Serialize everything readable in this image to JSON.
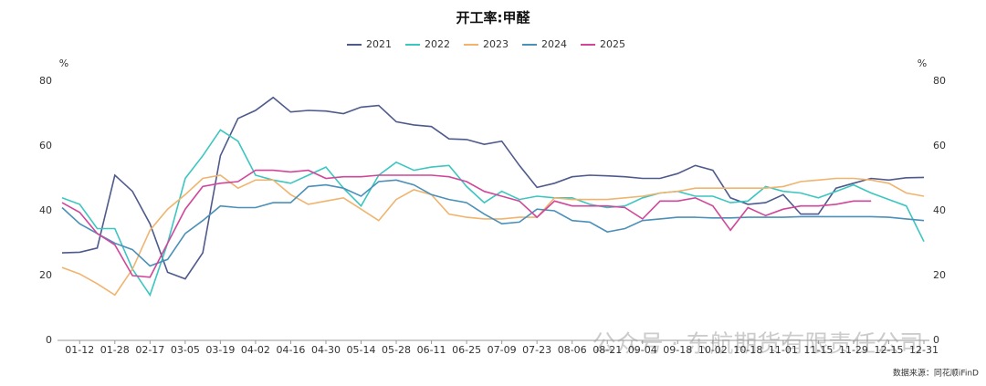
{
  "chart_data": {
    "type": "line",
    "title": "开工率:甲醛",
    "y_unit": "%",
    "y2_unit": "%",
    "source": "数据来源：同花顺iFinD",
    "watermark": "公众号 · 东航期货有限责任公司",
    "categories": [
      null,
      "01-12",
      null,
      "01-28",
      null,
      "02-17",
      null,
      "03-05",
      null,
      "03-19",
      null,
      "04-02",
      null,
      "04-16",
      null,
      "04-30",
      null,
      "05-14",
      null,
      "05-28",
      null,
      "06-11",
      null,
      "06-25",
      null,
      "07-09",
      null,
      "07-23",
      null,
      "08-06",
      null,
      "08-21",
      null,
      "09-04",
      null,
      "09-18",
      null,
      "10-02",
      null,
      "10-18",
      null,
      "11-01",
      null,
      "11-15",
      null,
      "11-29",
      null,
      "12-15",
      null,
      "12-31"
    ],
    "series": [
      {
        "name": "2021",
        "color": "#4e5a8c",
        "values": [
          27,
          27.2,
          28.5,
          51,
          46,
          36,
          21,
          19,
          27,
          57,
          68.5,
          71,
          75,
          70.5,
          71,
          70.8,
          70,
          72,
          72.5,
          67.5,
          66.5,
          66,
          62.2,
          62,
          60.5,
          61.5,
          54,
          47.2,
          48.5,
          50.5,
          51,
          50.8,
          50.5,
          50,
          50,
          51.5,
          54,
          52.5,
          44,
          42,
          42.5,
          45,
          39,
          39,
          47,
          48.5,
          50,
          49.5,
          50.2,
          50.3
        ]
      },
      {
        "name": "2022",
        "color": "#3cc6c0",
        "values": [
          44,
          42,
          34.5,
          34.5,
          22,
          14,
          30,
          50,
          57,
          65,
          61.5,
          51,
          49.5,
          48.5,
          51,
          53.5,
          47,
          41.5,
          51,
          55,
          52.5,
          53.5,
          54,
          47.5,
          42.5,
          46,
          43.5,
          44.5,
          44,
          44,
          42,
          41,
          41.5,
          44,
          45.5,
          46,
          44.5,
          44.5,
          42.5,
          43,
          47.5,
          46,
          45.5,
          44,
          46,
          48,
          45.5,
          43.5,
          41.5,
          30.5
        ]
      },
      {
        "name": "2023",
        "color": "#f0b46e",
        "values": [
          22.5,
          20.5,
          17.5,
          14,
          22,
          34,
          40.5,
          45,
          50,
          51,
          47,
          49.5,
          49.5,
          45,
          42,
          43,
          44,
          40.5,
          37,
          43.5,
          46.5,
          45,
          39,
          38,
          37.5,
          37.5,
          38,
          38,
          44,
          43.5,
          43.5,
          43.5,
          44,
          44.5,
          45.5,
          46,
          47,
          47,
          47,
          47,
          47,
          47.5,
          49,
          49.5,
          50,
          50,
          49.5,
          48.5,
          45.5,
          44.5
        ]
      },
      {
        "name": "2024",
        "color": "#4a90b8",
        "values": [
          41,
          36,
          33,
          30,
          28,
          23,
          25,
          33,
          37,
          41.5,
          41,
          41,
          42.5,
          42.5,
          47.5,
          48,
          47,
          44.5,
          49,
          49.5,
          48,
          45,
          43.5,
          42.5,
          39,
          36,
          36.5,
          40.5,
          40,
          37,
          36.5,
          33.5,
          34.5,
          37,
          37.5,
          38,
          38,
          37.8,
          37.8,
          38,
          38,
          38,
          38.2,
          38.2,
          38.2,
          38.2,
          38.2,
          38,
          37.5,
          37
        ]
      },
      {
        "name": "2025",
        "color": "#d0479a",
        "values": [
          42.5,
          39.5,
          33,
          29.5,
          20,
          19.5,
          30,
          40.5,
          47.5,
          48.5,
          49,
          52.5,
          52.5,
          52,
          52.5,
          50,
          50.5,
          50.5,
          51,
          51,
          51,
          51,
          50.5,
          49,
          46,
          44.5,
          43,
          38,
          43,
          41.5,
          41.5,
          41.5,
          41,
          37.5,
          43,
          43,
          44,
          41.5,
          34,
          41,
          38.5,
          40.5,
          41.5,
          41.5,
          42,
          43,
          43,
          null,
          null,
          null
        ]
      }
    ],
    "ylim": [
      0,
      80
    ],
    "yticks": [
      0,
      20,
      40,
      60,
      80
    ],
    "y2lim": [
      0,
      80
    ],
    "y2ticks": [
      0,
      20,
      40,
      60,
      80
    ],
    "grid": false
  }
}
